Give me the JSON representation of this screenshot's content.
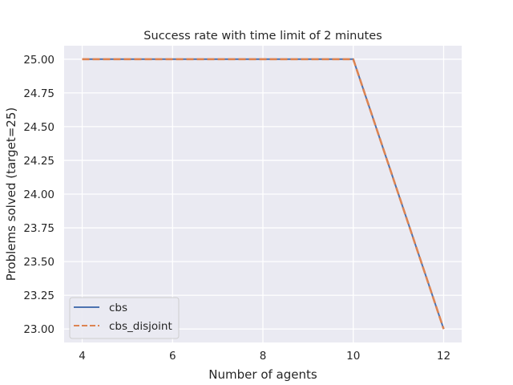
{
  "chart_data": {
    "type": "line",
    "title": "Success rate with time limit of 2 minutes",
    "xlabel": "Number of agents",
    "ylabel": "Problems solved (target=25)",
    "xlim": [
      3.6,
      12.4
    ],
    "ylim": [
      22.9,
      25.1
    ],
    "xticks": [
      4,
      6,
      8,
      10,
      12
    ],
    "yticks": [
      23.0,
      23.25,
      23.5,
      23.75,
      24.0,
      24.25,
      24.5,
      24.75,
      25.0
    ],
    "ytick_labels": [
      "23.00",
      "23.25",
      "23.50",
      "23.75",
      "24.00",
      "24.25",
      "24.50",
      "24.75",
      "25.00"
    ],
    "xtick_labels": [
      "4",
      "6",
      "8",
      "10",
      "12"
    ],
    "grid": true,
    "legend_position": "lower-left",
    "series": [
      {
        "name": "cbs",
        "x": [
          4,
          5,
          6,
          7,
          8,
          9,
          10,
          11,
          12
        ],
        "y": [
          25,
          25,
          25,
          25,
          25,
          25,
          25,
          24,
          23
        ],
        "color": "#4c72b0",
        "style": "solid"
      },
      {
        "name": "cbs_disjoint",
        "x": [
          4,
          5,
          6,
          7,
          8,
          9,
          10,
          11,
          12
        ],
        "y": [
          25,
          25,
          25,
          25,
          25,
          25,
          25,
          24,
          23
        ],
        "color": "#dd8452",
        "style": "dashed"
      }
    ]
  }
}
